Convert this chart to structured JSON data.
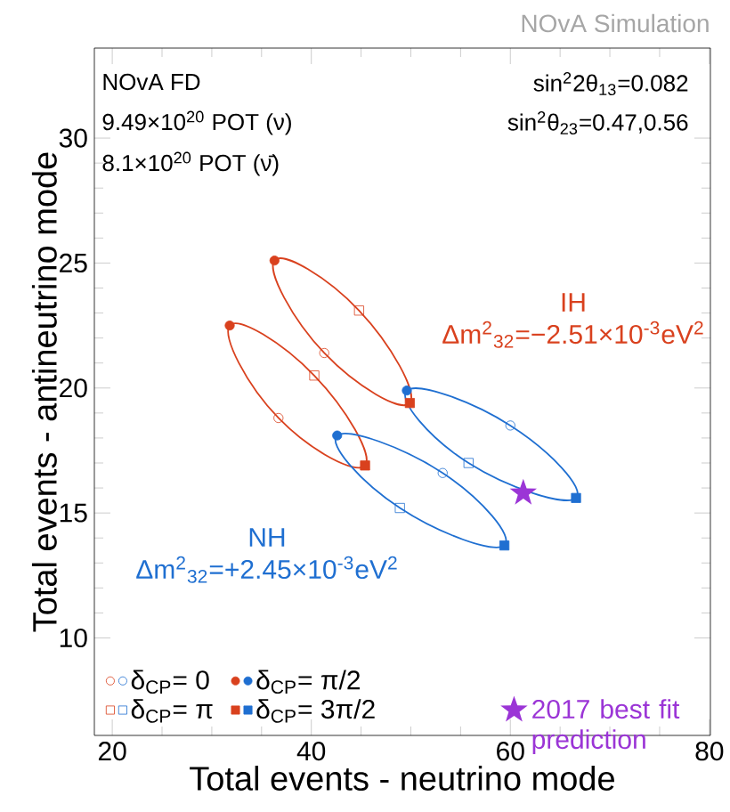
{
  "chart_data": {
    "type": "scatter",
    "xlabel": "Total events - neutrino mode",
    "ylabel": "Total events - antineutrino mode",
    "annotations": [
      "NOvA FD",
      "9.49×10$^{20}$ POT (ν)",
      "8.1×10$^{20}$ POT (ν̄)",
      "sin$^{2}$2θ$_{13}$=0.082",
      "sin$^{2}$θ$_{23}$=0.47,0.56",
      "NOvA Simulation",
      "IH Δm$^{2}$$_{32}$=−2.51×10$^{-3}$eV$^{2}$",
      "NH Δm$^{2}$$_{32}$=+2.45×10$^{-3}$eV$^{2}$"
    ],
    "xlim": [
      18.2,
      80.1
    ],
    "ylim": [
      6.1,
      33.6
    ],
    "xticks": [
      20,
      40,
      60,
      80
    ],
    "yticks": [
      10,
      15,
      20,
      25,
      30
    ],
    "legend": "bottom",
    "series": [
      {
        "name": "δ$_{CP}$= 0",
        "marker": "circle",
        "colors": [
          "#d9411e",
          "#d9411e",
          "#1f6fd1",
          "#1f6fd1"
        ],
        "x": [
          41.3,
          36.7,
          60.0,
          53.2
        ],
        "values": [
          21.4,
          18.8,
          18.5,
          16.6
        ]
      },
      {
        "name": "δ$_{CP}$= π/2",
        "marker": "circle",
        "colors": [
          "#d9411e",
          "#d9411e",
          "#1f6fd1",
          "#1f6fd1"
        ],
        "x": [
          36.3,
          31.8,
          49.6,
          42.6
        ],
        "values": [
          25.1,
          22.5,
          19.9,
          18.1
        ]
      },
      {
        "name": "δ$_{CP}$= π",
        "marker": "square",
        "colors": [
          "#d9411e",
          "#d9411e",
          "#1f6fd1",
          "#1f6fd1"
        ],
        "x": [
          44.8,
          40.3,
          55.8,
          48.9
        ],
        "values": [
          23.1,
          20.5,
          17.0,
          15.2
        ]
      },
      {
        "name": "δ$_{CP}$= 3π/2",
        "marker": "square",
        "colors": [
          "#d9411e",
          "#d9411e",
          "#1f6fd1",
          "#1f6fd1"
        ],
        "x": [
          49.9,
          45.4,
          66.6,
          59.4
        ],
        "values": [
          19.4,
          16.9,
          15.6,
          13.7
        ]
      },
      {
        "name": "2017 best fit prediction",
        "marker": "star",
        "color": "#9b35d6",
        "x": [
          61.3
        ],
        "values": [
          15.8
        ]
      }
    ]
  }
}
